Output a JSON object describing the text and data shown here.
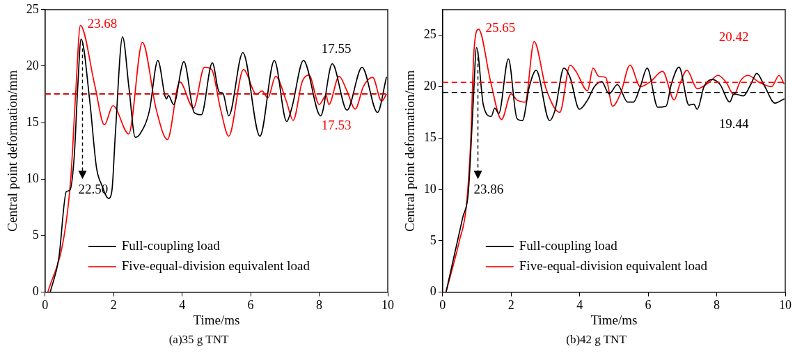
{
  "chart_data": [
    {
      "type": "line",
      "title": "(a)35 g TNT",
      "xlabel": "Time/ms",
      "ylabel": "Central point deformation/mm",
      "xlim": [
        0,
        10
      ],
      "xticks": [
        0,
        2,
        4,
        6,
        8,
        10
      ],
      "ylim": [
        0,
        25
      ],
      "yticks": [
        0,
        5,
        10,
        15,
        20,
        25
      ],
      "legend": "bottom left",
      "series": [
        {
          "name": "Full-coupling load",
          "color": "#000000",
          "x": [
            0.15,
            0.4,
            0.62,
            0.72,
            0.85,
            0.95,
            1.05,
            1.3,
            1.5,
            1.65,
            1.85,
            1.95,
            2.05,
            2.26,
            2.45,
            2.63,
            2.77,
            3.04,
            3.29,
            3.54,
            3.6,
            3.75,
            4.05,
            4.35,
            4.56,
            4.88,
            5.08,
            5.19,
            5.36,
            5.77,
            6.27,
            6.69,
            7.05,
            7.2,
            7.54,
            8.04,
            8.38,
            8.81,
            9.25,
            9.7,
            9.96
          ],
          "values": [
            0,
            3,
            8.9,
            9,
            12,
            18,
            22.4,
            17,
            11,
            9.5,
            8.3,
            9,
            14,
            22.6,
            18,
            13.7,
            14,
            16,
            20.5,
            17.1,
            17.4,
            16.6,
            20.4,
            15.9,
            15.7,
            20.3,
            17.7,
            17.6,
            15.6,
            21.2,
            13.8,
            20.5,
            15.1,
            16.3,
            20.5,
            15.6,
            20.2,
            16.1,
            19.9,
            15.9,
            19
          ]
        },
        {
          "name": "Five-equal-division equivalent load",
          "color": "#ff0000",
          "x": [
            0.08,
            0.55,
            0.75,
            0.89,
            1.03,
            1.45,
            1.73,
            1.98,
            2.44,
            2.84,
            3.24,
            3.57,
            3.93,
            4.33,
            4.65,
            4.86,
            5.12,
            5.36,
            5.79,
            6.17,
            6.33,
            6.5,
            6.73,
            7.04,
            7.24,
            7.5,
            7.7,
            8.0,
            8.2,
            8.28,
            8.58,
            8.81,
            9.05,
            9.29,
            9.56,
            9.82,
            9.96
          ],
          "values": [
            0,
            4.9,
            10.1,
            17.5,
            23.6,
            18.3,
            14.8,
            16.5,
            14,
            22.1,
            16.2,
            13.5,
            18.6,
            16.3,
            19.9,
            19.7,
            16.2,
            13.8,
            19.7,
            17.5,
            17.8,
            17.2,
            19.1,
            16.9,
            15.2,
            18.6,
            19.2,
            16.6,
            17.4,
            16.6,
            19.1,
            17.8,
            16.2,
            18.2,
            19,
            16.9,
            17.5
          ]
        }
      ],
      "ref_lines": [
        {
          "axis": "y",
          "value": 17.55,
          "label": "17.55",
          "color": "#000000",
          "line_style": "dashed"
        },
        {
          "axis": "y",
          "value": 17.53,
          "label": "17.53",
          "color": "#ff0000",
          "line_style": "dashed"
        }
      ],
      "annotations": [
        {
          "text": "23.68",
          "x": 1.03,
          "y": 23.68
        },
        {
          "text": "22.50",
          "x": 1.05,
          "y": 22.5
        }
      ]
    },
    {
      "type": "line",
      "title": "(b)42 g TNT",
      "xlabel": "Time/ms",
      "ylabel": "Central point deformation/mm",
      "xlim": [
        0,
        10
      ],
      "xticks": [
        0,
        2,
        4,
        6,
        8,
        10
      ],
      "ylim": [
        0,
        27.5
      ],
      "yticks": [
        0,
        5,
        10,
        15,
        20,
        25
      ],
      "legend": "bottom left",
      "series": [
        {
          "name": "Full-coupling load",
          "color": "#000000",
          "x": [
            0.1,
            0.59,
            0.75,
            0.89,
            0.99,
            1.19,
            1.42,
            1.52,
            1.64,
            1.92,
            2.17,
            2.33,
            2.53,
            2.73,
            3.12,
            3.28,
            3.54,
            3.72,
            3.99,
            4.23,
            4.43,
            4.64,
            4.86,
            5.1,
            5.4,
            5.57,
            5.77,
            5.97,
            6.28,
            6.52,
            6.68,
            6.9,
            7.19,
            7.33,
            7.43,
            7.63,
            7.87,
            8.1,
            8.38,
            8.5,
            8.78,
            8.99,
            9.17,
            9.39,
            9.7,
            9.96
          ],
          "values": [
            0,
            7.3,
            9.7,
            18.2,
            23.8,
            18.2,
            17.1,
            17.9,
            17.4,
            22.7,
            16.9,
            16.7,
            20,
            21.6,
            16.7,
            17.7,
            21.8,
            20.9,
            17.8,
            18.7,
            20,
            20.5,
            19.3,
            20.2,
            18.5,
            18.5,
            20,
            21.8,
            18,
            18.1,
            20.3,
            21.9,
            18.2,
            18.3,
            17.8,
            20,
            20.7,
            20.2,
            18.5,
            19.3,
            19.1,
            20.2,
            21.3,
            20.1,
            18.4,
            18.8
          ]
        },
        {
          "name": "Five-equal-division equivalent load",
          "color": "#ff0000",
          "x": [
            0.1,
            0.49,
            0.69,
            0.82,
            0.91,
            1.05,
            1.4,
            1.72,
            2.0,
            2.17,
            2.41,
            2.67,
            3.02,
            3.42,
            3.72,
            3.89,
            4.23,
            4.39,
            4.56,
            4.76,
            4.96,
            5.2,
            5.47,
            5.77,
            6.07,
            6.42,
            6.76,
            6.92,
            7.13,
            7.43,
            7.77,
            8.04,
            8.28,
            8.5,
            8.7,
            8.91,
            9.25,
            9.6,
            9.82,
            9.96
          ],
          "values": [
            0,
            5,
            8.3,
            14.7,
            23.2,
            25.6,
            20.5,
            16.8,
            19.3,
            18.7,
            18.5,
            24.4,
            19.8,
            17.5,
            22.1,
            21.5,
            19.6,
            21.8,
            21,
            20.9,
            18.1,
            19.4,
            22.1,
            20,
            20.5,
            21.5,
            18.7,
            20.2,
            21.6,
            19.8,
            20.4,
            21.1,
            20.4,
            19.2,
            20.6,
            21.1,
            20.4,
            20,
            21.1,
            20.3
          ]
        }
      ],
      "ref_lines": [
        {
          "axis": "y",
          "value": 20.42,
          "label": "20.42",
          "color": "#ff0000",
          "line_style": "dashed"
        },
        {
          "axis": "y",
          "value": 19.44,
          "label": "19.44",
          "color": "#000000",
          "line_style": "dashed"
        }
      ],
      "annotations": [
        {
          "text": "25.65",
          "x": 1.05,
          "y": 25.65
        },
        {
          "text": "23.86",
          "x": 0.99,
          "y": 23.86
        }
      ]
    }
  ]
}
